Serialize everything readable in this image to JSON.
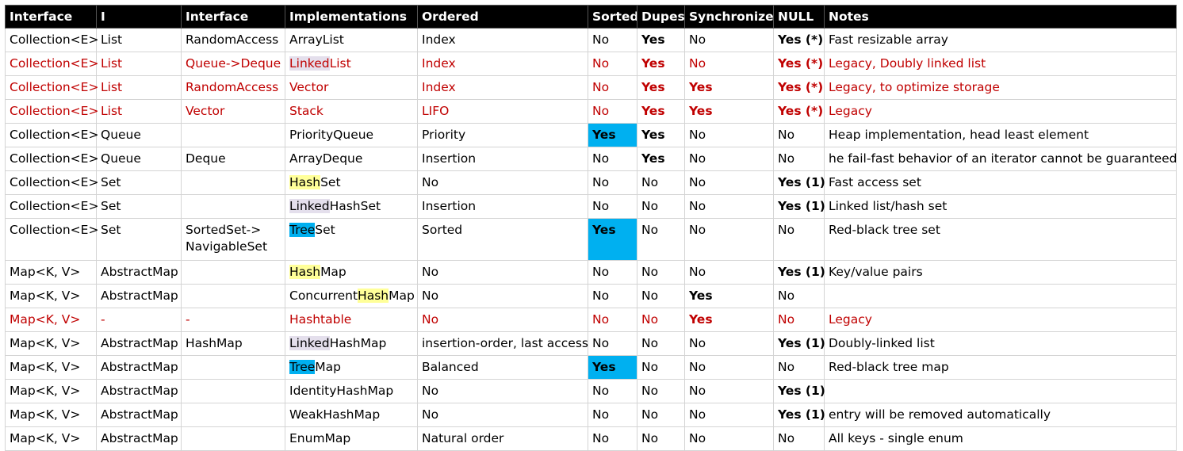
{
  "columns": [
    "Interface",
    "I",
    "Interface",
    "Implementations",
    "Ordered",
    "Sorted",
    "Dupes",
    "Synchronized",
    "NULL",
    "Notes"
  ],
  "rows": [
    {
      "iface": "Collection<E>",
      "i": "List",
      "iface2": "RandomAccess",
      "impl": [
        {
          "t": "ArrayList"
        }
      ],
      "ordered": "Index",
      "sorted": "No",
      "dupes": "Yes",
      "sync": "No",
      "null": "Yes (*)",
      "notes": "Fast resizable array",
      "red": false
    },
    {
      "iface": "Collection<E>",
      "i": "List",
      "iface2": "Queue->Deque",
      "impl": [
        {
          "t": "Linked",
          "hl": "p"
        },
        {
          "t": "List"
        }
      ],
      "ordered": "Index",
      "sorted": "No",
      "dupes": "Yes",
      "sync": "No",
      "null": "Yes (*)",
      "notes": "Legacy, Doubly linked list",
      "red": true
    },
    {
      "iface": "Collection<E>",
      "i": "List",
      "iface2": "RandomAccess",
      "impl": [
        {
          "t": "Vector"
        }
      ],
      "ordered": "Index",
      "sorted": "No",
      "dupes": "Yes",
      "sync": "Yes",
      "null": "Yes (*)",
      "notes": "Legacy, to optimize storage",
      "red": true
    },
    {
      "iface": "Collection<E>",
      "i": "List",
      "iface2": "Vector",
      "impl": [
        {
          "t": "Stack"
        }
      ],
      "ordered": "LIFO",
      "sorted": "No",
      "dupes": "Yes",
      "sync": "Yes",
      "null": "Yes (*)",
      "notes": "Legacy",
      "red": true
    },
    {
      "iface": "Collection<E>",
      "i": "Queue",
      "iface2": "",
      "impl": [
        {
          "t": "PriorityQueue"
        }
      ],
      "ordered": "Priority",
      "sorted": "Yes",
      "dupes": "Yes",
      "sync": "No",
      "null": "No",
      "notes": "Heap implementation, head least element",
      "red": false
    },
    {
      "iface": "Collection<E>",
      "i": "Queue",
      "iface2": "Deque",
      "impl": [
        {
          "t": "ArrayDeque"
        }
      ],
      "ordered": "Insertion",
      "sorted": "No",
      "dupes": "Yes",
      "sync": "No",
      "null": "No",
      "notes": "he fail-fast behavior of an iterator cannot be guaranteed",
      "red": false
    },
    {
      "iface": "Collection<E>",
      "i": "Set",
      "iface2": "",
      "impl": [
        {
          "t": "Hash",
          "hl": "y"
        },
        {
          "t": "Set"
        }
      ],
      "ordered": "No",
      "sorted": "No",
      "dupes": "No",
      "sync": "No",
      "null": "Yes (1)",
      "notes": "Fast access set",
      "red": false
    },
    {
      "iface": "Collection<E>",
      "i": "Set",
      "iface2": "",
      "impl": [
        {
          "t": "Linked",
          "hl": "p"
        },
        {
          "t": "HashSet"
        }
      ],
      "ordered": "Insertion",
      "sorted": "No",
      "dupes": "No",
      "sync": "No",
      "null": "Yes (1)",
      "notes": "Linked list/hash set",
      "red": false
    },
    {
      "iface": "Collection<E>",
      "i": "Set",
      "iface2": "SortedSet->",
      "iface2b": "NavigableSet",
      "impl": [
        {
          "t": "Tree",
          "hl": "c"
        },
        {
          "t": "Set"
        }
      ],
      "ordered": "Sorted",
      "sorted": "Yes",
      "dupes": "No",
      "sync": "No",
      "null": "No",
      "notes": "Red-black tree set",
      "red": false
    },
    {
      "iface": "Map<K, V>",
      "i": "AbstractMap",
      "iface2": "",
      "impl": [
        {
          "t": "Hash",
          "hl": "y"
        },
        {
          "t": "Map"
        }
      ],
      "ordered": "No",
      "sorted": "No",
      "dupes": "No",
      "sync": "No",
      "null": "Yes (1)",
      "notes": "Key/value pairs",
      "red": false
    },
    {
      "iface": "Map<K, V>",
      "i": "AbstractMap",
      "iface2": "",
      "impl": [
        {
          "t": "Concurrent"
        },
        {
          "t": "Hash",
          "hl": "y"
        },
        {
          "t": "Map"
        }
      ],
      "ordered": "No",
      "sorted": "No",
      "dupes": "No",
      "sync": "Yes",
      "null": "No",
      "notes": "",
      "red": false
    },
    {
      "iface": "Map<K, V>",
      "i": "-",
      "iface2": "-",
      "impl": [
        {
          "t": "Hashtable"
        }
      ],
      "ordered": "No",
      "sorted": "No",
      "dupes": "No",
      "sync": "Yes",
      "null": "No",
      "notes": "Legacy",
      "red": true
    },
    {
      "iface": "Map<K, V>",
      "i": "AbstractMap",
      "iface2": "HashMap",
      "impl": [
        {
          "t": "Linked",
          "hl": "p"
        },
        {
          "t": "HashMap"
        }
      ],
      "ordered": "insertion-order, last access",
      "sorted": "No",
      "dupes": "No",
      "sync": "No",
      "null": "Yes (1)",
      "notes": "Doubly-linked list",
      "red": false
    },
    {
      "iface": "Map<K, V>",
      "i": "AbstractMap",
      "iface2": "",
      "impl": [
        {
          "t": "Tree",
          "hl": "c"
        },
        {
          "t": "Map"
        }
      ],
      "ordered": "Balanced",
      "sorted": "Yes",
      "dupes": "No",
      "sync": "No",
      "null": "No",
      "notes": "Red-black tree map",
      "red": false
    },
    {
      "iface": "Map<K, V>",
      "i": "AbstractMap",
      "iface2": "",
      "impl": [
        {
          "t": "IdentityHashMap"
        }
      ],
      "ordered": "No",
      "sorted": "No",
      "dupes": "No",
      "sync": "No",
      "null": "Yes (1)",
      "notes": "",
      "red": false
    },
    {
      "iface": "Map<K, V>",
      "i": "AbstractMap",
      "iface2": "",
      "impl": [
        {
          "t": "WeakHashMap"
        }
      ],
      "ordered": "No",
      "sorted": "No",
      "dupes": "No",
      "sync": "No",
      "null": "Yes (1)",
      "notes": "entry will be removed automatically",
      "red": false
    },
    {
      "iface": "Map<K, V>",
      "i": "AbstractMap",
      "iface2": "",
      "impl": [
        {
          "t": "EnumMap"
        }
      ],
      "ordered": "Natural order",
      "sorted": "No",
      "dupes": "No",
      "sync": "No",
      "null": "No",
      "notes": "All keys - single enum",
      "red": false
    }
  ],
  "colors": {
    "header_bg": "#000000",
    "legacy_text": "#c00000",
    "sorted_yes_bg": "#00b0f0",
    "hl_hash": "#ffff99",
    "hl_linked": "#e4dfec",
    "hl_tree": "#00b0f0"
  }
}
